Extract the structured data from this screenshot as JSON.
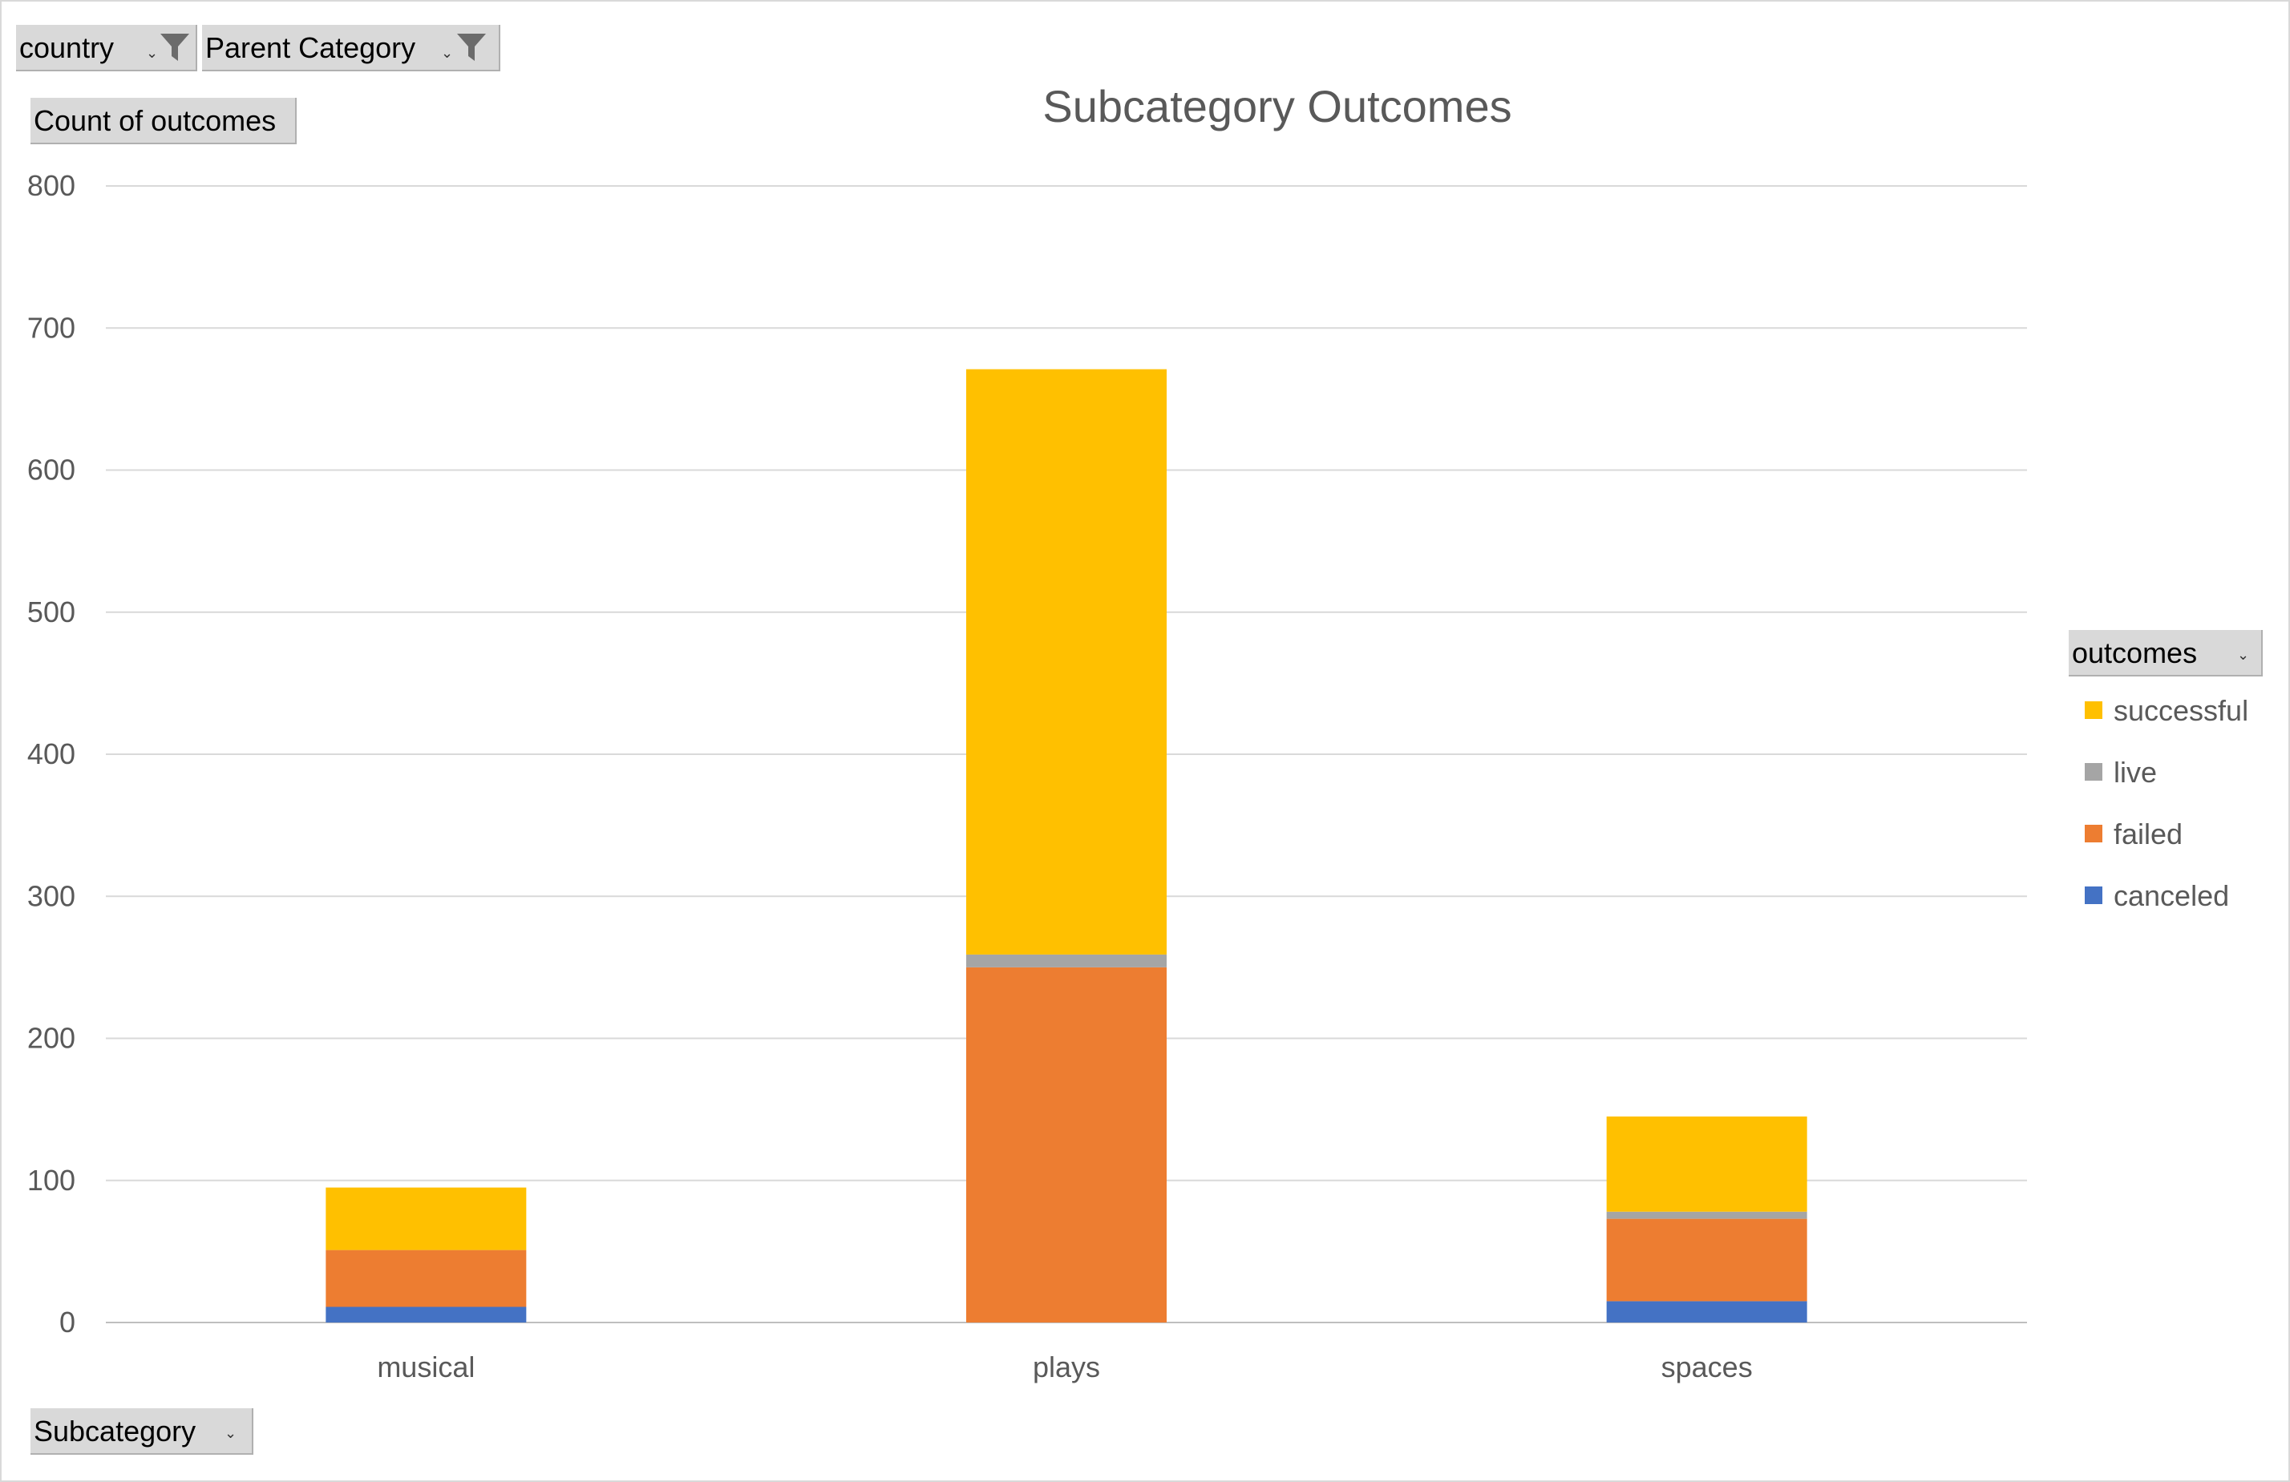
{
  "filters": {
    "country_label": "country",
    "parent_category_label": "Parent Category",
    "values_label": "Count of outcomes",
    "legend_field_label": "outcomes",
    "axis_field_label": "Subcategory"
  },
  "icons": {
    "filter": "funnel-icon",
    "dropdown": "dropdown-arrow-icon"
  },
  "chart_data": {
    "type": "bar",
    "stacked": true,
    "title": "Subcategory Outcomes",
    "categories": [
      "musical",
      "plays",
      "spaces"
    ],
    "series": [
      {
        "name": "canceled",
        "color": "#4472C4",
        "values": [
          11,
          0,
          15
        ]
      },
      {
        "name": "failed",
        "color": "#ED7D31",
        "values": [
          40,
          250,
          58
        ]
      },
      {
        "name": "live",
        "color": "#A5A5A5",
        "values": [
          0,
          9,
          5
        ]
      },
      {
        "name": "successful",
        "color": "#FFC000",
        "values": [
          44,
          412,
          67
        ]
      }
    ],
    "ylim": [
      0,
      800
    ],
    "yticks": [
      0,
      100,
      200,
      300,
      400,
      500,
      600,
      700,
      800
    ],
    "grid": true,
    "legend_position": "right",
    "legend_order": [
      "successful",
      "live",
      "failed",
      "canceled"
    ]
  }
}
